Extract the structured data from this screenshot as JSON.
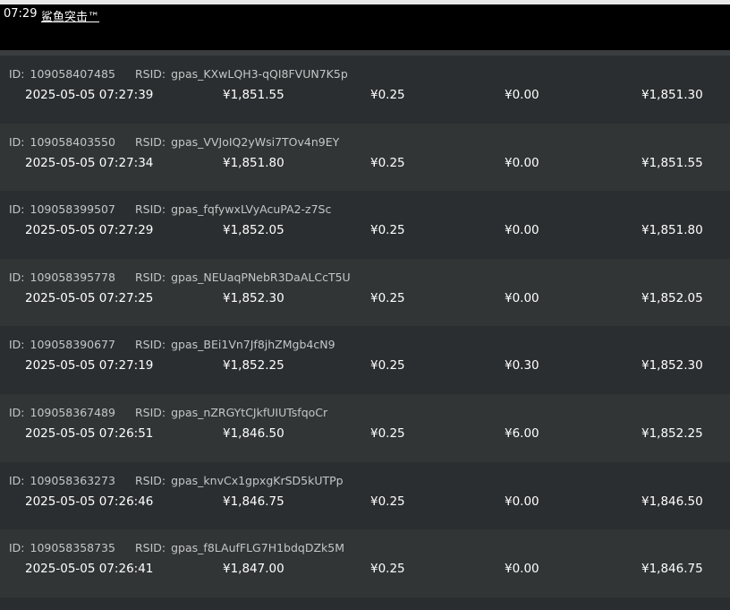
{
  "header": {
    "time": "07:29",
    "title": "鲨鱼突击™"
  },
  "labels": {
    "id": "ID:",
    "rsid": "RSID:"
  },
  "rows": [
    {
      "id": "109058407485",
      "rsid": "gpas_KXwLQH3-qQI8FVUN7K5p",
      "datetime": "2025-05-05 07:27:39",
      "amount": "¥1,851.55",
      "fee": "¥0.25",
      "other": "¥0.00",
      "balance": "¥1,851.30"
    },
    {
      "id": "109058403550",
      "rsid": "gpas_VVJoIQ2yWsi7TOv4n9EY",
      "datetime": "2025-05-05 07:27:34",
      "amount": "¥1,851.80",
      "fee": "¥0.25",
      "other": "¥0.00",
      "balance": "¥1,851.55"
    },
    {
      "id": "109058399507",
      "rsid": "gpas_fqfywxLVyAcuPA2-z7Sc",
      "datetime": "2025-05-05 07:27:29",
      "amount": "¥1,852.05",
      "fee": "¥0.25",
      "other": "¥0.00",
      "balance": "¥1,851.80"
    },
    {
      "id": "109058395778",
      "rsid": "gpas_NEUaqPNebR3DaALCcT5U",
      "datetime": "2025-05-05 07:27:25",
      "amount": "¥1,852.30",
      "fee": "¥0.25",
      "other": "¥0.00",
      "balance": "¥1,852.05"
    },
    {
      "id": "109058390677",
      "rsid": "gpas_BEi1Vn7Jf8jhZMgb4cN9",
      "datetime": "2025-05-05 07:27:19",
      "amount": "¥1,852.25",
      "fee": "¥0.25",
      "other": "¥0.30",
      "balance": "¥1,852.30"
    },
    {
      "id": "109058367489",
      "rsid": "gpas_nZRGYtCJkfUIUTsfqoCr",
      "datetime": "2025-05-05 07:26:51",
      "amount": "¥1,846.50",
      "fee": "¥0.25",
      "other": "¥6.00",
      "balance": "¥1,852.25"
    },
    {
      "id": "109058363273",
      "rsid": "gpas_knvCx1gpxgKrSD5kUTPp",
      "datetime": "2025-05-05 07:26:46",
      "amount": "¥1,846.75",
      "fee": "¥0.25",
      "other": "¥0.00",
      "balance": "¥1,846.50"
    },
    {
      "id": "109058358735",
      "rsid": "gpas_f8LAufFLG7H1bdqDZk5M",
      "datetime": "2025-05-05 07:26:41",
      "amount": "¥1,847.00",
      "fee": "¥0.25",
      "other": "¥0.00",
      "balance": "¥1,846.75"
    }
  ]
}
